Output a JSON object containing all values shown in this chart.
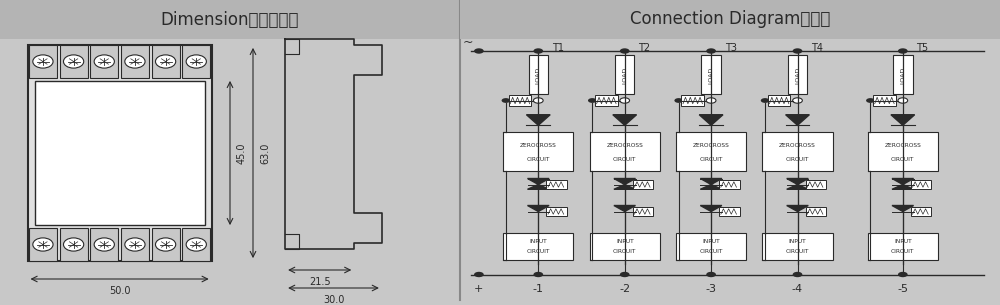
{
  "bg_color": "#c8c8c8",
  "left_panel_bg": "#d0d0d0",
  "right_panel_bg": "#d0d0d0",
  "header_bg": "#b4b4b4",
  "white": "#ffffff",
  "black": "#000000",
  "dark_gray": "#2a2a2a",
  "left_title": "Dimension外型尺寸图",
  "right_title": "Connection Diagram接线图",
  "dim_50": "50.0",
  "dim_45": "45.0",
  "dim_63": "63.0",
  "dim_21_5": "21.5",
  "dim_30": "30.0",
  "channels": [
    "T1",
    "T2",
    "T3",
    "T4",
    "T5"
  ],
  "bottom_labels": [
    "+",
    "-1",
    "-2",
    "-3",
    "-4",
    "-5"
  ],
  "title_fontsize": 12,
  "label_fontsize": 7
}
